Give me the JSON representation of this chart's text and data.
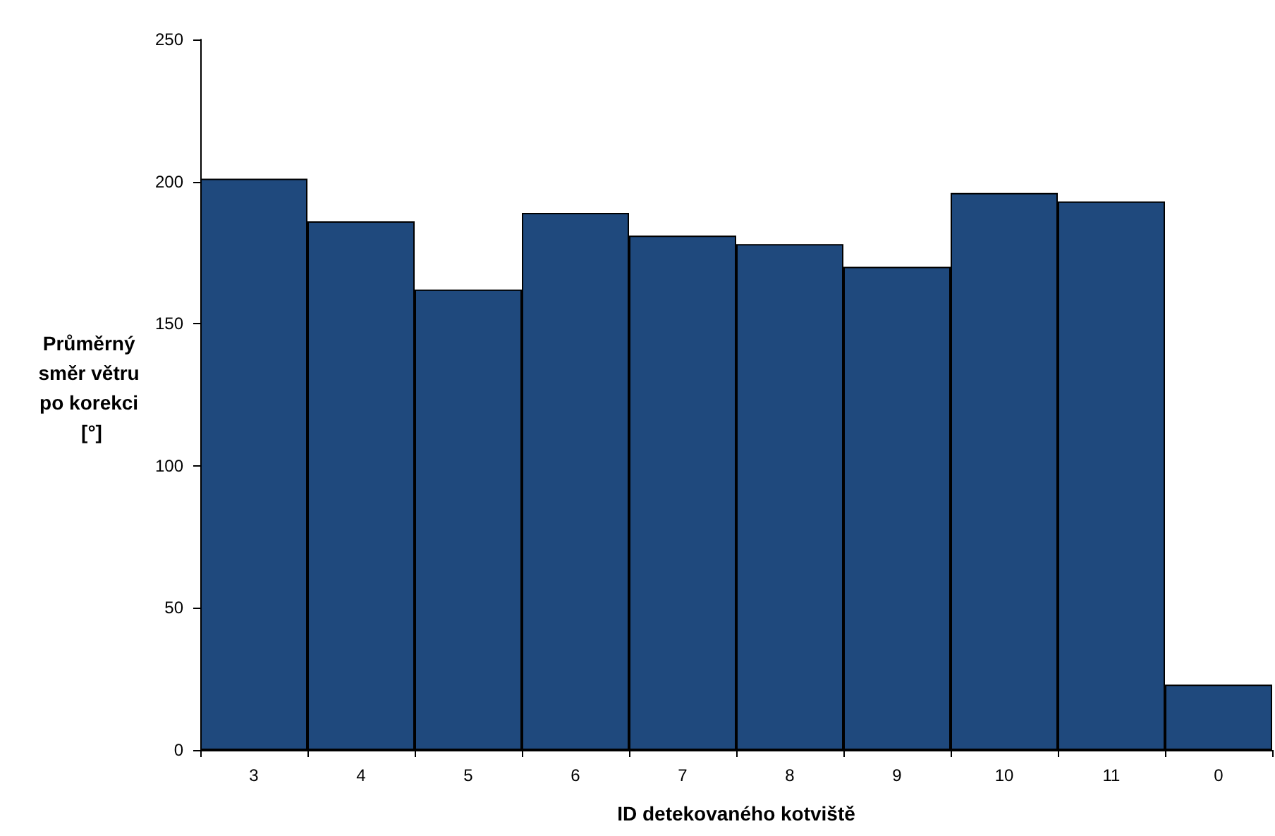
{
  "chart_data": {
    "type": "bar",
    "xlabel": "ID detekovaného kotviště",
    "ylabel": "Průměrný směr větru po korekci [°]",
    "categories": [
      "3",
      "4",
      "5",
      "6",
      "7",
      "8",
      "9",
      "10",
      "11",
      "0"
    ],
    "values": [
      201,
      186,
      162,
      189,
      181,
      178,
      170,
      196,
      193,
      23
    ],
    "color": "#1f497d",
    "ylim": [
      0,
      250
    ],
    "yticks": [
      0,
      50,
      100,
      150,
      200,
      250
    ],
    "grid": false
  }
}
